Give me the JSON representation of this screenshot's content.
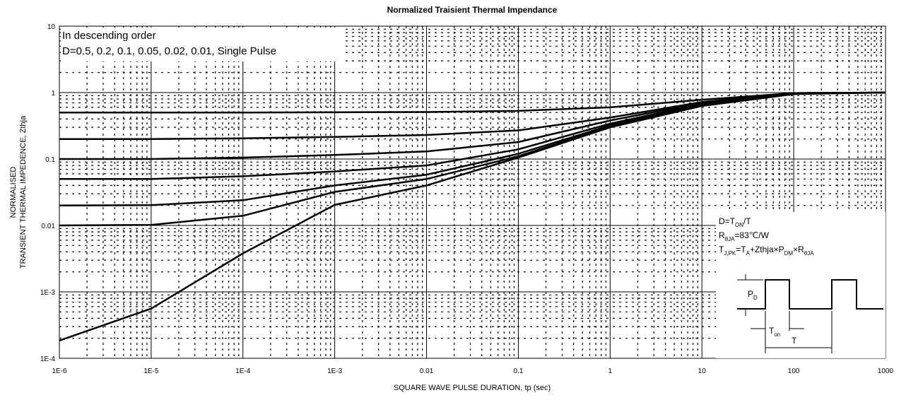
{
  "chart_data": {
    "type": "line",
    "title": "Normalized Traisient Thermal Impendance",
    "xlabel": "SQUARE WAVE PULSE DURATION,  tp (sec)",
    "ylabel": [
      "NORMALISED",
      "TRANSIENT THERMAL IMPEDENCE,  Zthja"
    ],
    "log_x": true,
    "log_y": true,
    "grid": true,
    "xlim": [
      1e-06,
      1000
    ],
    "ylim": [
      0.0001,
      10
    ],
    "xticks": [
      {
        "value": 1e-06,
        "label": "1E-6"
      },
      {
        "value": 1e-05,
        "label": "1E-5"
      },
      {
        "value": 0.0001,
        "label": "1E-4"
      },
      {
        "value": 0.001,
        "label": "1E-3"
      },
      0.01,
      0.1,
      1,
      10,
      100,
      1000
    ],
    "yticks": [
      {
        "value": 0.0001,
        "label": "1E-4"
      },
      {
        "value": 0.001,
        "label": "1E-3"
      },
      0.01,
      0.1,
      1,
      10
    ],
    "x": [
      1e-06,
      1e-05,
      0.0001,
      0.001,
      0.01,
      0.1,
      1,
      10,
      100,
      1000
    ],
    "series": [
      {
        "color": "#000000",
        "values": [
          0.5,
          0.5,
          0.5,
          0.505,
          0.51,
          0.53,
          0.6,
          0.78,
          0.98,
          1
        ]
      },
      {
        "color": "#000000",
        "values": [
          0.2,
          0.2,
          0.205,
          0.215,
          0.23,
          0.27,
          0.42,
          0.72,
          0.98,
          1
        ]
      },
      {
        "color": "#000000",
        "values": [
          0.1,
          0.1,
          0.105,
          0.115,
          0.13,
          0.18,
          0.38,
          0.7,
          0.98,
          1
        ]
      },
      {
        "color": "#000000",
        "values": [
          0.05,
          0.05,
          0.055,
          0.065,
          0.08,
          0.14,
          0.34,
          0.68,
          0.97,
          1
        ]
      },
      {
        "color": "#000000",
        "values": [
          0.02,
          0.0202,
          0.024,
          0.04,
          0.058,
          0.12,
          0.32,
          0.66,
          0.97,
          1
        ]
      },
      {
        "color": "#000000",
        "values": [
          0.01,
          0.0102,
          0.014,
          0.032,
          0.05,
          0.11,
          0.31,
          0.65,
          0.97,
          1
        ]
      },
      {
        "color": "#000000",
        "values": [
          0.000185,
          0.00056,
          0.0038,
          0.0204,
          0.04,
          0.105,
          0.3,
          0.63,
          0.95,
          1
        ]
      }
    ],
    "annotations": [
      "In descending order",
      "D=0.5, 0.2, 0.1, 0.05, 0.02, 0.01, Single Pulse"
    ],
    "formulas": [
      [
        "D=T",
        "ON",
        "/T"
      ],
      [
        "R",
        "θJA",
        "=83℃/W"
      ],
      [
        "T",
        "J,PK",
        "=T",
        "A",
        "+Zthja×P",
        "DM",
        "×R",
        "θJA"
      ]
    ],
    "pulse_labels": [
      [
        "P",
        "D"
      ],
      [
        "T",
        "on"
      ],
      [
        "T"
      ]
    ]
  }
}
